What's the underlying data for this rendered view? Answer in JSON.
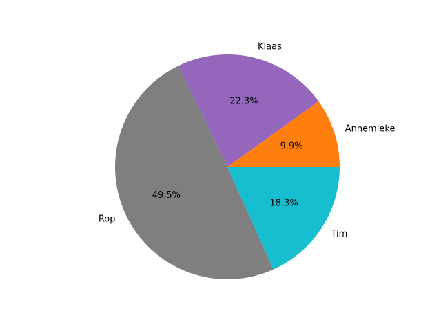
{
  "chart_data": {
    "type": "pie",
    "title": "",
    "labels": [
      "Annemieke",
      "Klaas",
      "Rop",
      "Tim"
    ],
    "values": [
      9.9,
      22.3,
      49.5,
      18.3
    ],
    "percent_labels": [
      "9.9%",
      "22.3%",
      "49.5%",
      "18.3%"
    ],
    "colors": [
      "#ff7f0e",
      "#9467bd",
      "#7f7f7f",
      "#17becf"
    ],
    "start_angle_deg": 0,
    "direction": "counterclockwise",
    "legend": "none"
  }
}
